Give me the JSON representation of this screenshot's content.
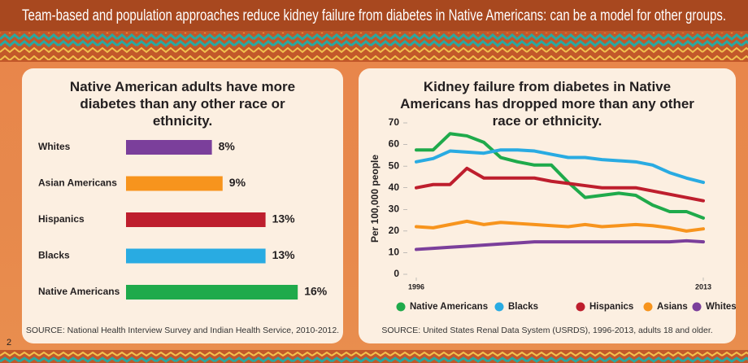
{
  "header": {
    "title": "Team-based and population approaches reduce kidney failure from diabetes in Native Americans: can be a model for other groups.",
    "page_number": "2"
  },
  "chart_data": [
    {
      "type": "bar",
      "orientation": "horizontal",
      "title": "Native American adults have more diabetes than any other race or ethnicity.",
      "categories": [
        "Whites",
        "Asian Americans",
        "Hispanics",
        "Blacks",
        "Native Americans"
      ],
      "values": [
        8,
        9,
        13,
        13,
        16
      ],
      "value_labels": [
        "8%",
        "9%",
        "13%",
        "13%",
        "16%"
      ],
      "colors": [
        "#7b3f9b",
        "#f7941d",
        "#be1e2d",
        "#29abe2",
        "#1faa4b"
      ],
      "source": "SOURCE: National Health Interview Survey and Indian Health Service, 2010-2012."
    },
    {
      "type": "line",
      "title": "Kidney failure from diabetes in Native Americans has dropped more than any other race or ethnicity.",
      "y_label": "Per 100,000 people",
      "x": [
        1996,
        1997,
        1998,
        1999,
        2000,
        2001,
        2002,
        2003,
        2004,
        2005,
        2006,
        2007,
        2008,
        2009,
        2010,
        2011,
        2012,
        2013
      ],
      "xlim": [
        1996,
        2013
      ],
      "xticks": [
        1996,
        2013
      ],
      "ylim": [
        0,
        70
      ],
      "yticks": [
        0,
        10,
        20,
        30,
        40,
        50,
        60,
        70
      ],
      "grid": false,
      "legend": "bottom",
      "series": [
        {
          "name": "Native Americans",
          "color": "#1faa4b",
          "values": [
            57.5,
            57.5,
            65,
            64,
            61,
            54,
            52,
            50.5,
            50.5,
            42.5,
            35.5,
            36.5,
            37.5,
            36.5,
            32,
            29,
            29,
            26
          ]
        },
        {
          "name": "Blacks",
          "color": "#29abe2",
          "values": [
            52,
            53.5,
            57,
            56.5,
            56,
            57.5,
            57.5,
            57,
            55.5,
            54,
            54,
            53,
            52.5,
            52,
            50.5,
            47,
            44.5,
            42.5
          ]
        },
        {
          "name": "Hispanics",
          "color": "#be1e2d",
          "values": [
            40,
            41.5,
            41.5,
            49,
            44.5,
            44.5,
            44.5,
            44.5,
            43,
            42,
            41,
            40,
            40,
            40,
            38.5,
            37,
            35.5,
            34
          ]
        },
        {
          "name": "Asians",
          "color": "#f7941d",
          "values": [
            22,
            21.5,
            23,
            24.5,
            23,
            24,
            23.5,
            23,
            22.5,
            22,
            23,
            22,
            22.5,
            23,
            22.5,
            21.5,
            20,
            21
          ]
        },
        {
          "name": "Whites",
          "color": "#7b3f9b",
          "values": [
            11.5,
            12,
            12.5,
            13,
            13.5,
            14,
            14.5,
            15,
            15,
            15,
            15,
            15,
            15,
            15,
            15,
            15,
            15.5,
            15
          ]
        }
      ],
      "source": "SOURCE: United States Renal Data System (USRDS), 1996-2013, adults 18 and older."
    }
  ]
}
